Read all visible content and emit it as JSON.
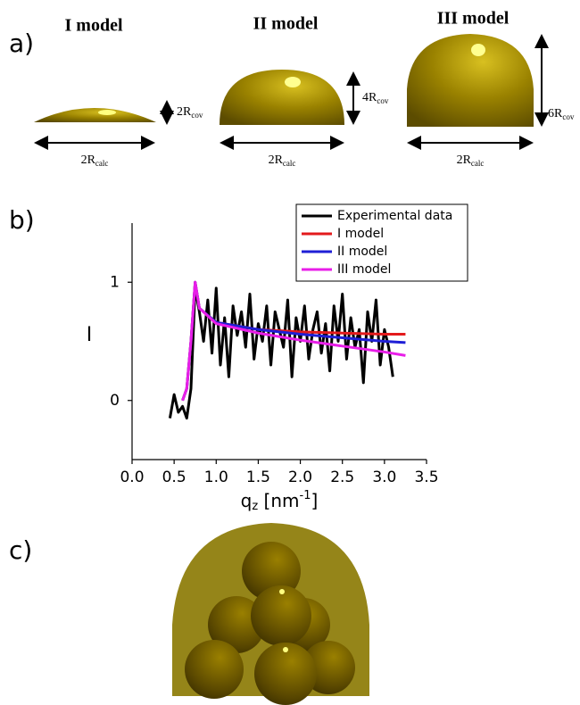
{
  "panel_labels": [
    "a)",
    "b)",
    "c)"
  ],
  "models": [
    {
      "title": "I model",
      "height": {
        "base": "2R",
        "sub": "cov"
      },
      "width": {
        "base": "2R",
        "sub": "calc"
      }
    },
    {
      "title": "II model",
      "height": {
        "base": "4R",
        "sub": "cov"
      },
      "width": {
        "base": "2R",
        "sub": "calc"
      }
    },
    {
      "title": "III model",
      "height": {
        "base": "6R",
        "sub": "cov"
      },
      "width": {
        "base": "2R",
        "sub": "calc"
      }
    }
  ],
  "chart_data": {
    "type": "line",
    "y_label": "I",
    "x_label": {
      "main": "q",
      "sub": "z",
      "unit": " [nm",
      "sup": "-1",
      "close": "]"
    },
    "xlim": [
      0,
      3.5
    ],
    "ylim": [
      -0.5,
      1.5
    ],
    "xticks": [
      {
        "value": 0,
        "label": "0.0"
      },
      {
        "value": 0.5,
        "label": "0.5"
      },
      {
        "value": 1,
        "label": "1.0"
      },
      {
        "value": 1.5,
        "label": "1.5"
      },
      {
        "value": 2,
        "label": "2.0"
      },
      {
        "value": 2.5,
        "label": "2.5"
      },
      {
        "value": 3,
        "label": "3.0"
      },
      {
        "value": 3.5,
        "label": "3.5"
      }
    ],
    "yticks": [
      0,
      1
    ],
    "legend": "top-right",
    "series": [
      {
        "name": "Experimental data",
        "color": "#000000",
        "x": [
          0.45,
          0.5,
          0.55,
          0.6,
          0.65,
          0.7,
          0.75,
          0.8,
          0.85,
          0.9,
          0.95,
          1.0,
          1.05,
          1.1,
          1.15,
          1.2,
          1.25,
          1.3,
          1.35,
          1.4,
          1.45,
          1.5,
          1.55,
          1.6,
          1.65,
          1.7,
          1.75,
          1.8,
          1.85,
          1.9,
          1.95,
          2.0,
          2.05,
          2.1,
          2.15,
          2.2,
          2.25,
          2.3,
          2.35,
          2.4,
          2.45,
          2.5,
          2.55,
          2.6,
          2.65,
          2.7,
          2.75,
          2.8,
          2.85,
          2.9,
          2.95,
          3.0,
          3.05,
          3.1
        ],
        "values": [
          -0.15,
          0.05,
          -0.1,
          -0.05,
          -0.15,
          0.1,
          0.95,
          0.75,
          0.5,
          0.85,
          0.4,
          0.95,
          0.3,
          0.7,
          0.2,
          0.8,
          0.55,
          0.75,
          0.45,
          0.9,
          0.35,
          0.65,
          0.5,
          0.8,
          0.3,
          0.75,
          0.6,
          0.45,
          0.85,
          0.2,
          0.7,
          0.5,
          0.8,
          0.35,
          0.6,
          0.75,
          0.4,
          0.65,
          0.25,
          0.8,
          0.5,
          0.9,
          0.35,
          0.7,
          0.45,
          0.6,
          0.15,
          0.75,
          0.5,
          0.85,
          0.3,
          0.6,
          0.45,
          0.2
        ]
      },
      {
        "name": "I model",
        "color": "#e31a1c",
        "x": [
          0.6,
          0.65,
          0.7,
          0.75,
          0.8,
          1.0,
          1.5,
          2.0,
          2.5,
          3.0,
          3.25
        ],
        "values": [
          0,
          0.1,
          0.5,
          1.0,
          0.78,
          0.66,
          0.6,
          0.58,
          0.57,
          0.56,
          0.56
        ]
      },
      {
        "name": "II model",
        "color": "#1f1fd6",
        "x": [
          0.6,
          0.65,
          0.7,
          0.75,
          0.8,
          1.0,
          1.5,
          2.0,
          2.5,
          3.0,
          3.25
        ],
        "values": [
          0,
          0.1,
          0.5,
          1.0,
          0.78,
          0.66,
          0.6,
          0.56,
          0.53,
          0.5,
          0.49
        ]
      },
      {
        "name": "III model",
        "color": "#e81ee8",
        "x": [
          0.6,
          0.65,
          0.7,
          0.75,
          0.8,
          1.0,
          1.5,
          2.0,
          2.5,
          3.0,
          3.25
        ],
        "values": [
          0,
          0.1,
          0.5,
          1.0,
          0.78,
          0.65,
          0.57,
          0.51,
          0.46,
          0.41,
          0.38
        ]
      }
    ]
  }
}
